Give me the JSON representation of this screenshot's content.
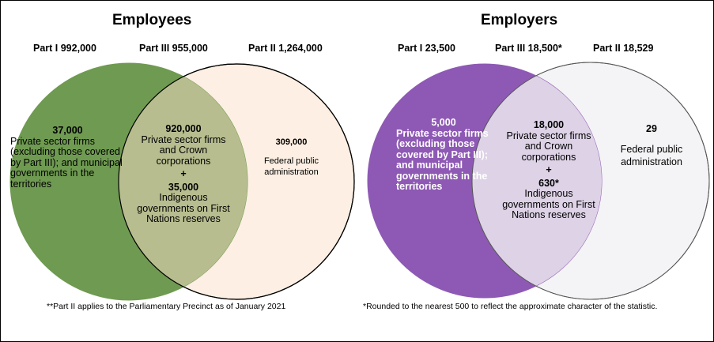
{
  "employees": {
    "title": "Employees",
    "parts": {
      "part1": "Part I 992,000",
      "part3": "Part III 955,000",
      "part2": "Part II 1,264,000"
    },
    "left_region": {
      "value": "37,000",
      "text": "Private sector firms (excluding those covered by Part III); and municipal governments in the territories"
    },
    "overlap_region": {
      "value1": "920,000",
      "text1": "Private sector firms and Crown corporations",
      "plus": "+",
      "value2": "35,000",
      "text2": "Indigenous governments on First Nations reserves"
    },
    "right_region": {
      "value": "309,000",
      "text": "Federal public administration"
    },
    "note": "**Part II applies to the Parliamentary Precinct as of January 2021",
    "colors": {
      "left": "#6f9a51",
      "overlap": "#b7bd8f",
      "right": "#fdefe3"
    }
  },
  "employers": {
    "title": "Employers",
    "parts": {
      "part1": "Part I 23,500",
      "part3": "Part III 18,500*",
      "part2": "Part II 18,529"
    },
    "left_region": {
      "value": "5,000",
      "text": "Private sector firms (excluding those covered by Part III); and municipal governments in the territories"
    },
    "overlap_region": {
      "value1": "18,000",
      "text1": "Private sector firms and Crown corporations",
      "plus": "+",
      "value2": "630*",
      "text2": "Indigenous governments on First Nations reserves"
    },
    "right_region": {
      "value": "29",
      "text": "Federal public administration"
    },
    "note": "*Rounded to the nearest 500 to reflect the approximate character of the statistic.",
    "colors": {
      "left": "#8e59b4",
      "overlap": "#ddd2e6",
      "right": "#f4f3f5"
    }
  }
}
